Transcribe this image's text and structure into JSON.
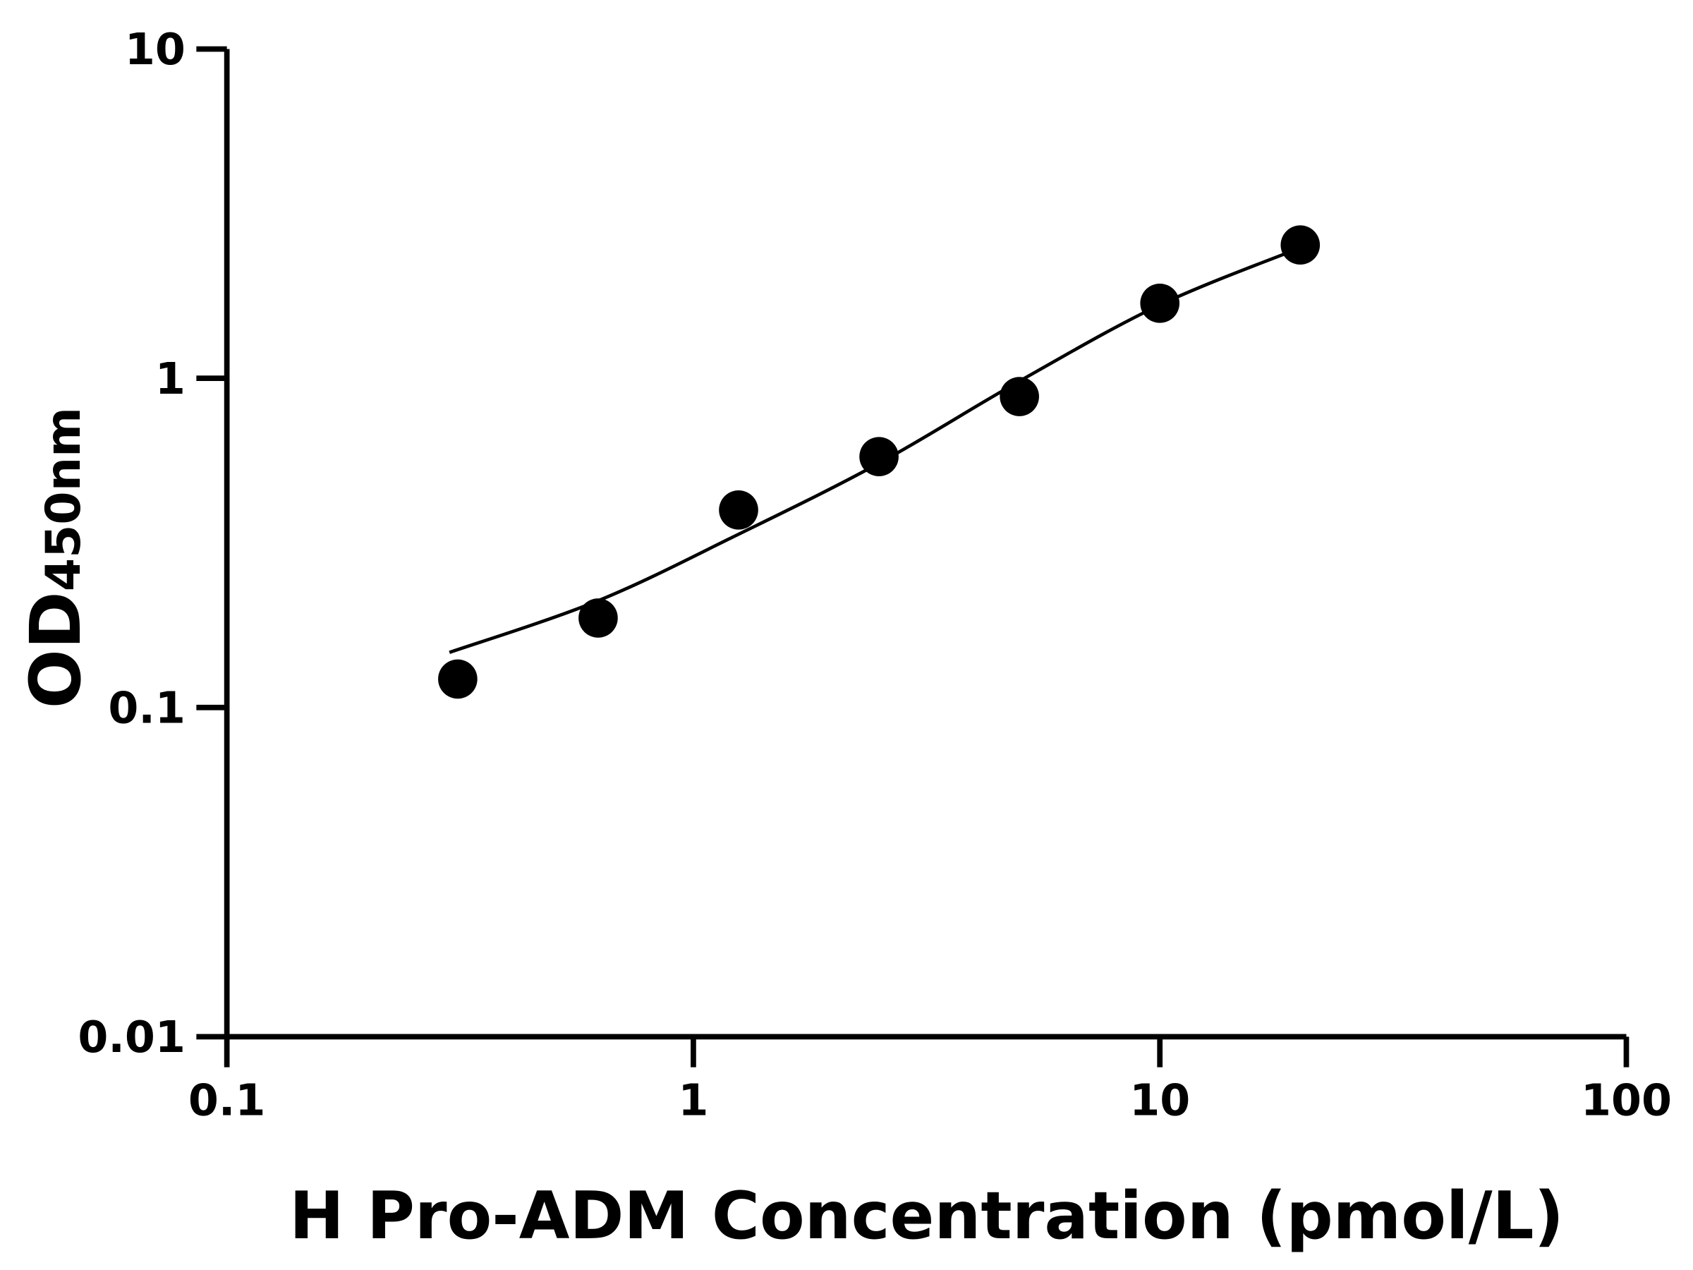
{
  "chart_data": {
    "type": "scatter",
    "xlabel": "H Pro-ADM Concentration (pmol/L)",
    "ylabel_main": "OD",
    "ylabel_sub": "450nm",
    "x_scale": "log",
    "y_scale": "log",
    "xlim": [
      0.1,
      100
    ],
    "ylim": [
      0.01,
      10
    ],
    "x_ticks": [
      {
        "v": 0.1,
        "label": "0.1"
      },
      {
        "v": 1,
        "label": "1"
      },
      {
        "v": 10,
        "label": "10"
      },
      {
        "v": 100,
        "label": "100"
      }
    ],
    "y_ticks": [
      {
        "v": 0.01,
        "label": "0.01"
      },
      {
        "v": 0.1,
        "label": "0.1"
      },
      {
        "v": 1,
        "label": "1"
      },
      {
        "v": 10,
        "label": "10"
      }
    ],
    "grid": false,
    "points": {
      "x": [
        0.3125,
        0.625,
        1.25,
        2.5,
        5,
        10,
        20
      ],
      "y": [
        0.122,
        0.187,
        0.398,
        0.578,
        0.88,
        1.69,
        2.54
      ]
    },
    "fit_curve": {
      "x": [
        0.3,
        0.625,
        1.25,
        2.5,
        5,
        10,
        20
      ],
      "y": [
        0.147,
        0.211,
        0.336,
        0.552,
        0.98,
        1.67,
        2.49
      ]
    },
    "colors": {
      "marks": "#000000",
      "axes": "#000000"
    }
  }
}
